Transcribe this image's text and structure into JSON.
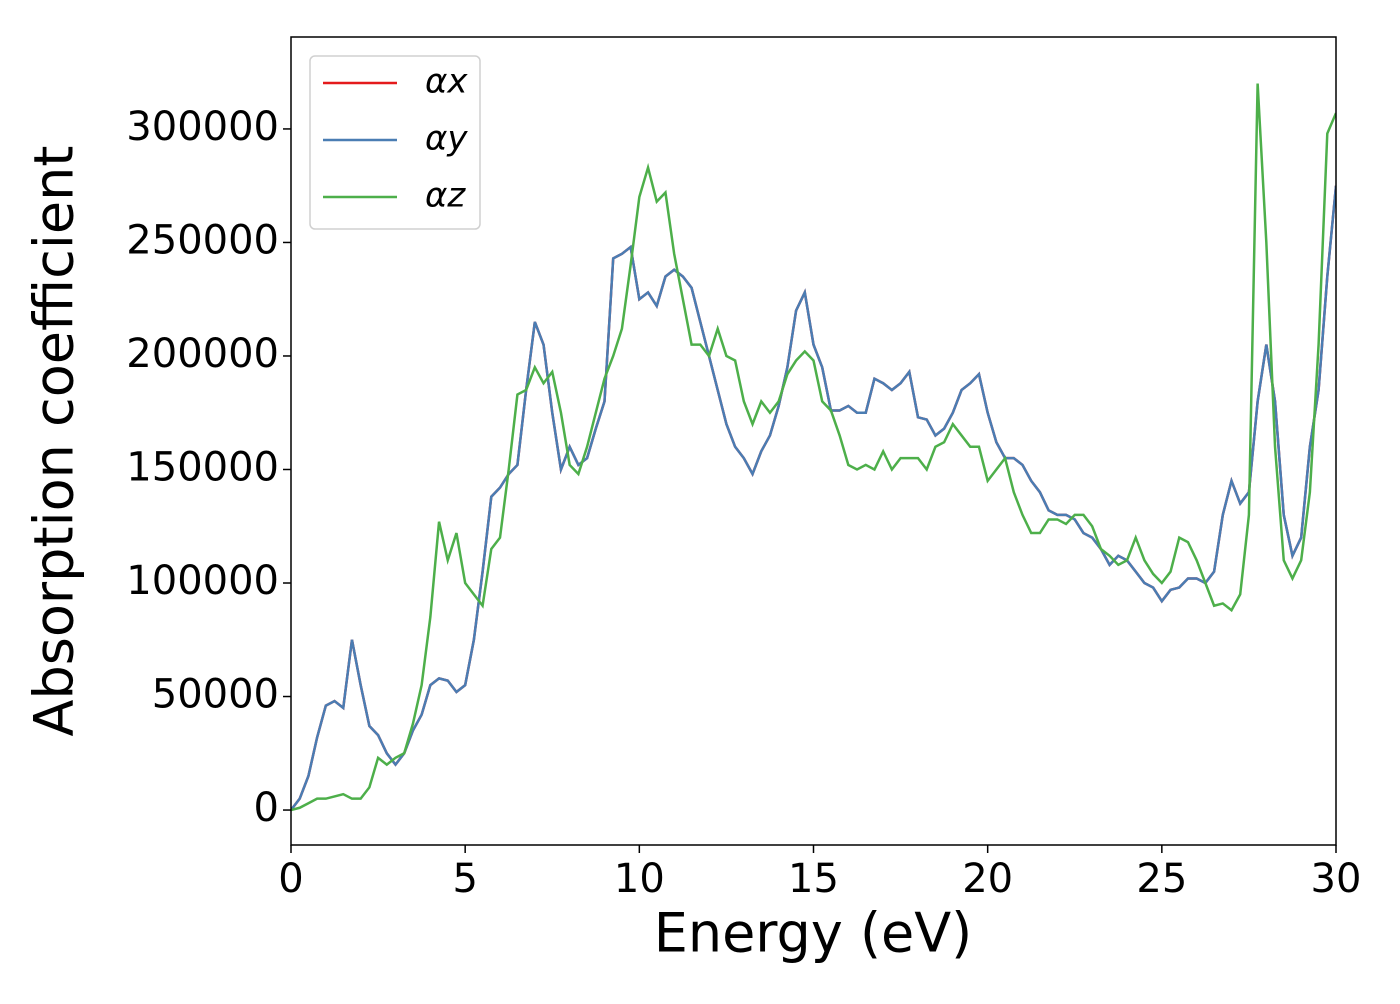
{
  "chart_data": {
    "type": "line",
    "xlabel": "Energy (eV)",
    "ylabel": "Absorption coefficient",
    "x": [
      0,
      0.25,
      0.5,
      0.75,
      1,
      1.25,
      1.5,
      1.75,
      2,
      2.25,
      2.5,
      2.75,
      3,
      3.25,
      3.5,
      3.75,
      4,
      4.25,
      4.5,
      4.75,
      5,
      5.25,
      5.5,
      5.75,
      6,
      6.25,
      6.5,
      6.75,
      7,
      7.25,
      7.5,
      7.75,
      8,
      8.25,
      8.5,
      8.75,
      9,
      9.25,
      9.5,
      9.75,
      10,
      10.25,
      10.5,
      10.75,
      11,
      11.25,
      11.5,
      11.75,
      12,
      12.25,
      12.5,
      12.75,
      13,
      13.25,
      13.5,
      13.75,
      14,
      14.25,
      14.5,
      14.75,
      15,
      15.25,
      15.5,
      15.75,
      16,
      16.25,
      16.5,
      16.75,
      17,
      17.25,
      17.5,
      17.75,
      18,
      18.25,
      18.5,
      18.75,
      19,
      19.25,
      19.5,
      19.75,
      20,
      20.25,
      20.5,
      20.75,
      21,
      21.25,
      21.5,
      21.75,
      22,
      22.25,
      22.5,
      22.75,
      23,
      23.25,
      23.5,
      23.75,
      24,
      24.25,
      24.5,
      24.75,
      25,
      25.25,
      25.5,
      25.75,
      26,
      26.25,
      26.5,
      26.75,
      27,
      27.25,
      27.5,
      27.75,
      28,
      28.25,
      28.5,
      28.75,
      29,
      29.25,
      29.5,
      29.75,
      30
    ],
    "series": [
      {
        "name": "αx",
        "color": "#e41a1c",
        "values": [
          0,
          5000,
          15000,
          32000,
          46000,
          48000,
          45000,
          75000,
          55000,
          37000,
          33000,
          25000,
          20000,
          25000,
          35000,
          42000,
          55000,
          58000,
          57000,
          52000,
          55000,
          75000,
          105000,
          138000,
          142000,
          148000,
          152000,
          185000,
          215000,
          205000,
          175000,
          150000,
          160000,
          152000,
          155000,
          168000,
          180000,
          243000,
          245000,
          248000,
          225000,
          228000,
          222000,
          235000,
          238000,
          235000,
          230000,
          215000,
          200000,
          185000,
          170000,
          160000,
          155000,
          148000,
          158000,
          165000,
          178000,
          195000,
          220000,
          228000,
          205000,
          195000,
          176000,
          176000,
          178000,
          175000,
          175000,
          190000,
          188000,
          185000,
          188000,
          193000,
          173000,
          172000,
          165000,
          168000,
          175000,
          185000,
          188000,
          192000,
          175000,
          162000,
          155000,
          155000,
          152000,
          145000,
          140000,
          132000,
          130000,
          130000,
          128000,
          122000,
          120000,
          115000,
          108000,
          112000,
          110000,
          105000,
          100000,
          98000,
          92000,
          97000,
          98000,
          102000,
          102000,
          100000,
          105000,
          130000,
          145000,
          135000,
          140000,
          180000,
          205000,
          180000,
          130000,
          112000,
          120000,
          160000,
          185000,
          235000,
          275000
        ]
      },
      {
        "name": "αy",
        "color": "#4a7db3",
        "values": [
          0,
          5000,
          15000,
          32000,
          46000,
          48000,
          45000,
          75000,
          55000,
          37000,
          33000,
          25000,
          20000,
          25000,
          35000,
          42000,
          55000,
          58000,
          57000,
          52000,
          55000,
          75000,
          105000,
          138000,
          142000,
          148000,
          152000,
          185000,
          215000,
          205000,
          175000,
          150000,
          160000,
          152000,
          155000,
          168000,
          180000,
          243000,
          245000,
          248000,
          225000,
          228000,
          222000,
          235000,
          238000,
          235000,
          230000,
          215000,
          200000,
          185000,
          170000,
          160000,
          155000,
          148000,
          158000,
          165000,
          178000,
          195000,
          220000,
          228000,
          205000,
          195000,
          176000,
          176000,
          178000,
          175000,
          175000,
          190000,
          188000,
          185000,
          188000,
          193000,
          173000,
          172000,
          165000,
          168000,
          175000,
          185000,
          188000,
          192000,
          175000,
          162000,
          155000,
          155000,
          152000,
          145000,
          140000,
          132000,
          130000,
          130000,
          128000,
          122000,
          120000,
          115000,
          108000,
          112000,
          110000,
          105000,
          100000,
          98000,
          92000,
          97000,
          98000,
          102000,
          102000,
          100000,
          105000,
          130000,
          145000,
          135000,
          140000,
          180000,
          205000,
          180000,
          130000,
          112000,
          120000,
          160000,
          185000,
          235000,
          275000
        ]
      },
      {
        "name": "αz",
        "color": "#4daf4a",
        "values": [
          0,
          1000,
          3000,
          5000,
          5000,
          6000,
          7000,
          5000,
          5000,
          10000,
          23000,
          20000,
          23000,
          25000,
          38000,
          55000,
          85000,
          127000,
          110000,
          122000,
          100000,
          95000,
          90000,
          115000,
          120000,
          150000,
          183000,
          185000,
          195000,
          188000,
          193000,
          175000,
          152000,
          148000,
          160000,
          175000,
          190000,
          200000,
          212000,
          240000,
          270000,
          283000,
          268000,
          272000,
          245000,
          225000,
          205000,
          205000,
          200000,
          212000,
          200000,
          198000,
          180000,
          170000,
          180000,
          175000,
          180000,
          192000,
          198000,
          202000,
          198000,
          180000,
          176000,
          165000,
          152000,
          150000,
          152000,
          150000,
          158000,
          150000,
          155000,
          155000,
          155000,
          150000,
          160000,
          162000,
          170000,
          165000,
          160000,
          160000,
          145000,
          150000,
          155000,
          140000,
          130000,
          122000,
          122000,
          128000,
          128000,
          126000,
          130000,
          130000,
          125000,
          115000,
          112000,
          108000,
          110000,
          120000,
          110000,
          104000,
          100000,
          105000,
          120000,
          118000,
          110000,
          100000,
          90000,
          91000,
          88000,
          95000,
          130000,
          320000,
          250000,
          160000,
          110000,
          102000,
          110000,
          140000,
          205000,
          298000,
          307000
        ]
      }
    ],
    "xlim": [
      0,
      30
    ],
    "xticks": [
      0,
      5,
      10,
      15,
      20,
      25,
      30
    ],
    "ylim": [
      -15400,
      340500
    ],
    "yticks": [
      0,
      50000,
      100000,
      150000,
      200000,
      250000,
      300000
    ],
    "legend": "upper left",
    "grid": false
  }
}
